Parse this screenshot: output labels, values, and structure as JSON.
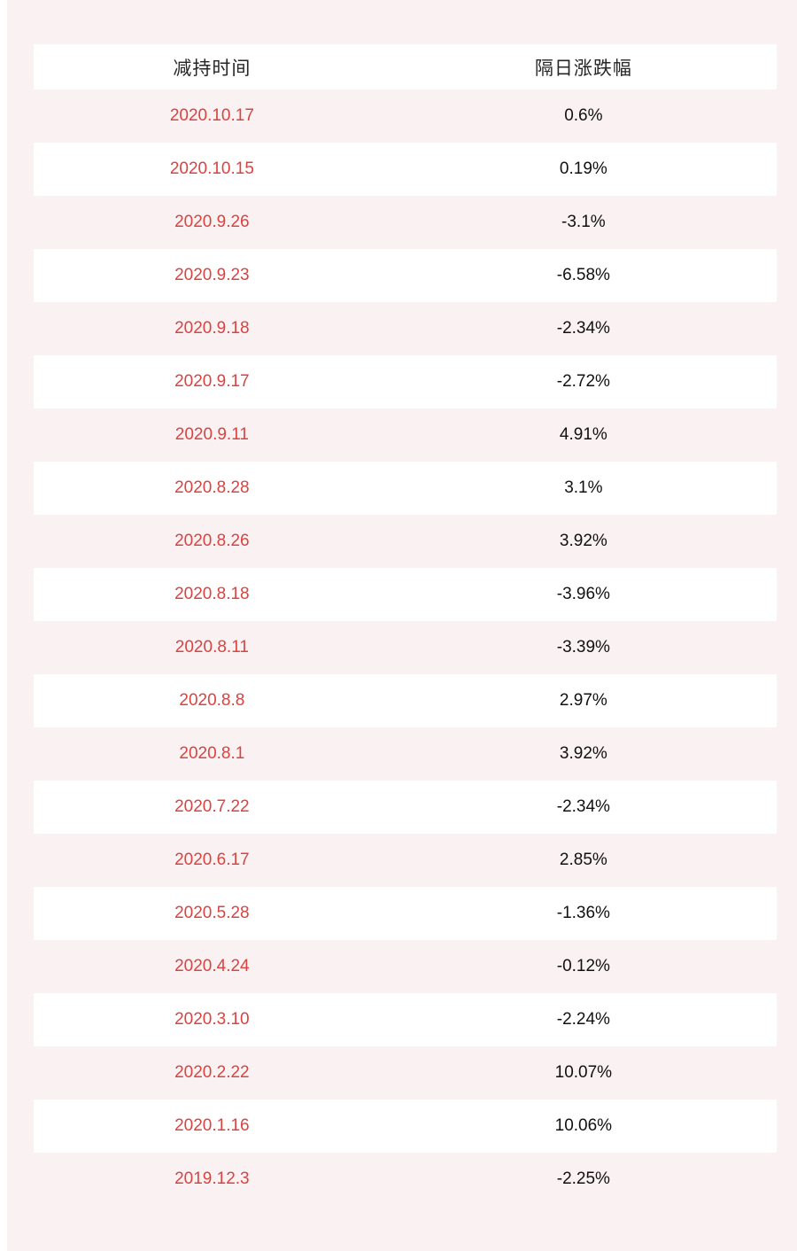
{
  "page": {
    "background_color": "#f9f1f2",
    "left_strip_color": "#ffffff"
  },
  "colors": {
    "date_red": "#da4340",
    "value_black": "#111111",
    "header_text": "#262626",
    "row_white": "#ffffff",
    "row_pink": "#f9f1f2"
  },
  "chart_data": {
    "type": "table",
    "title": "",
    "columns": [
      "减持时间",
      "隔日涨跌幅"
    ],
    "rows": [
      [
        "2020.10.17",
        "0.6%"
      ],
      [
        "2020.10.15",
        "0.19%"
      ],
      [
        "2020.9.26",
        "-3.1%"
      ],
      [
        "2020.9.23",
        "-6.58%"
      ],
      [
        "2020.9.18",
        "-2.34%"
      ],
      [
        "2020.9.17",
        "-2.72%"
      ],
      [
        "2020.9.11",
        "4.91%"
      ],
      [
        "2020.8.28",
        "3.1%"
      ],
      [
        "2020.8.26",
        "3.92%"
      ],
      [
        "2020.8.18",
        "-3.96%"
      ],
      [
        "2020.8.11",
        "-3.39%"
      ],
      [
        "2020.8.8",
        "2.97%"
      ],
      [
        "2020.8.1",
        "3.92%"
      ],
      [
        "2020.7.22",
        "-2.34%"
      ],
      [
        "2020.6.17",
        "2.85%"
      ],
      [
        "2020.5.28",
        "-1.36%"
      ],
      [
        "2020.4.24",
        "-0.12%"
      ],
      [
        "2020.3.10",
        "-2.24%"
      ],
      [
        "2020.2.22",
        "10.07%"
      ],
      [
        "2020.1.16",
        "10.06%"
      ],
      [
        "2019.12.3",
        "-2.25%"
      ]
    ],
    "numeric_changes_percent": [
      0.6,
      0.19,
      -3.1,
      -6.58,
      -2.34,
      -2.72,
      4.91,
      3.1,
      3.92,
      -3.96,
      -3.39,
      2.97,
      3.92,
      -2.34,
      2.85,
      -1.36,
      -0.12,
      -2.24,
      10.07,
      10.06,
      -2.25
    ],
    "layout": {
      "row_striping": "odd rows pink, even rows white, header white",
      "grid": "off",
      "alignment": "center"
    }
  }
}
